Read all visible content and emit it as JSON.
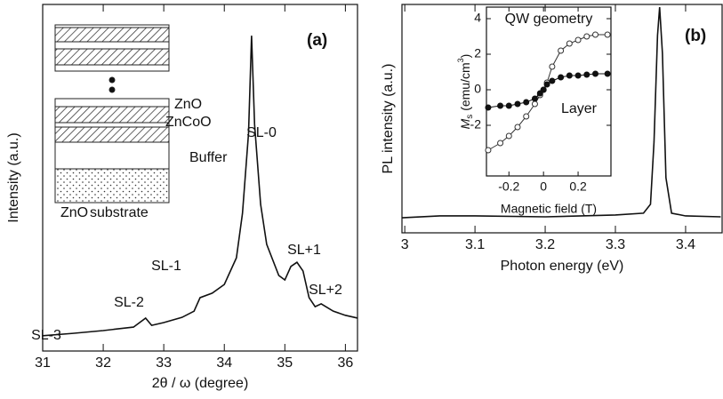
{
  "chart_data": [
    {
      "type": "line",
      "panel_label": "(a)",
      "xlabel": "2θ / ω (degree)",
      "ylabel": "Intensity (a.u.)",
      "xlim": [
        31,
        36.2
      ],
      "xticks": [
        31,
        32,
        33,
        34,
        35,
        36
      ],
      "ylim": [
        0,
        100
      ],
      "color": "#111111",
      "x": [
        31.0,
        31.5,
        32.0,
        32.5,
        32.7,
        32.8,
        33.0,
        33.3,
        33.5,
        33.6,
        33.8,
        34.0,
        34.2,
        34.3,
        34.4,
        34.45,
        34.5,
        34.6,
        34.7,
        34.9,
        35.0,
        35.1,
        35.2,
        35.3,
        35.4,
        35.5,
        35.6,
        35.8,
        36.0,
        36.2
      ],
      "values": [
        4.4,
        5.1,
        5.9,
        6.9,
        9.5,
        7.4,
        8.2,
        9.7,
        11.5,
        15.4,
        16.7,
        19.2,
        26.9,
        39.7,
        62.8,
        91,
        65.4,
        42.3,
        30.8,
        21.8,
        20.5,
        24.4,
        25.6,
        23.1,
        15.4,
        12.8,
        13.6,
        11.5,
        10.3,
        9.5
      ],
      "annotations": [
        "SL-3",
        "SL-2",
        "SL-1",
        "SL-0",
        "SL+1",
        "SL+2"
      ],
      "inset_labels": [
        "ZnO",
        "ZnCoO",
        "Buffer",
        "ZnO",
        "substrate"
      ]
    },
    {
      "type": "line",
      "panel_label": "(b)",
      "xlabel": "Photon energy (eV)",
      "ylabel": "PL intensity (a.u.)",
      "xlim": [
        2.996,
        3.452
      ],
      "xticks": [
        3,
        3.1,
        3.2,
        3.3,
        3.4
      ],
      "ylim": [
        0,
        100
      ],
      "color": "#111111",
      "x": [
        2.996,
        3.05,
        3.1,
        3.2,
        3.3,
        3.34,
        3.35,
        3.355,
        3.36,
        3.363,
        3.367,
        3.372,
        3.38,
        3.4,
        3.45
      ],
      "values": [
        6.6,
        7.4,
        7.4,
        7.0,
        7.8,
        8.6,
        12.5,
        39.7,
        86.4,
        98.8,
        78.6,
        24.1,
        8.6,
        7.4,
        7.0
      ]
    },
    {
      "type": "line",
      "xlabel": "Magnetic field (T)",
      "ylabel_parts": [
        "M",
        "s",
        " (emu/cm",
        "3",
        ")"
      ],
      "xlim": [
        -0.33,
        0.39
      ],
      "xticks": [
        -0.2,
        0,
        0.2
      ],
      "ylim": [
        -4.85,
        4.65
      ],
      "yticks": [
        -2,
        0,
        2,
        4
      ],
      "x": [
        -0.32,
        -0.25,
        -0.2,
        -0.15,
        -0.1,
        -0.05,
        -0.02,
        0,
        0.02,
        0.05,
        0.1,
        0.15,
        0.2,
        0.25,
        0.3,
        0.37
      ],
      "series": [
        {
          "name": "QW geometry",
          "color": "#333333",
          "marker": "open",
          "values": [
            -3.4,
            -3.0,
            -2.6,
            -2.1,
            -1.5,
            -0.8,
            -0.3,
            0,
            0.4,
            1.3,
            2.2,
            2.6,
            2.8,
            3.0,
            3.1,
            3.1
          ]
        },
        {
          "name": "Layer",
          "color": "#111111",
          "marker": "filled",
          "values": [
            -1.0,
            -0.9,
            -0.9,
            -0.8,
            -0.7,
            -0.5,
            -0.2,
            0,
            0.3,
            0.5,
            0.7,
            0.8,
            0.8,
            0.85,
            0.9,
            0.9
          ]
        }
      ]
    }
  ]
}
